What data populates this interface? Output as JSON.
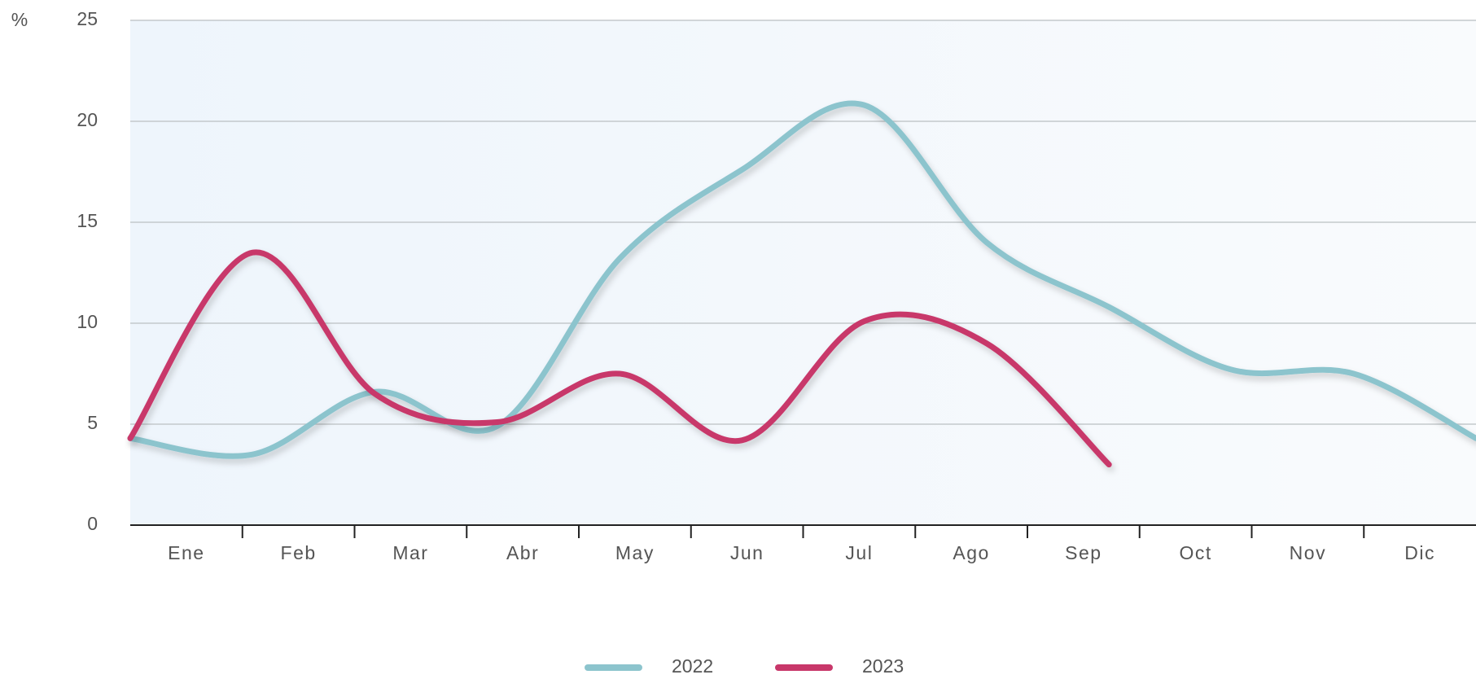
{
  "chart_data": {
    "type": "line",
    "y_label": "%",
    "categories": [
      "Ene",
      "Feb",
      "Mar",
      "Abr",
      "May",
      "Jun",
      "Jul",
      "Ago",
      "Sep",
      "Oct",
      "Nov",
      "Dic"
    ],
    "series": [
      {
        "name": "2022",
        "color": "#8cc4cd",
        "values": [
          4.3,
          3.5,
          6.6,
          4.9,
          13.2,
          17.6,
          20.8,
          14,
          10.8,
          7.7,
          7.5,
          4.3
        ]
      },
      {
        "name": "2023",
        "color": "#c8376a",
        "values": [
          4.3,
          13.5,
          6.5,
          5.1,
          7.5,
          4.2,
          10.1,
          9,
          3.0,
          null,
          null,
          null
        ]
      }
    ],
    "ylim": [
      0,
      25
    ],
    "yticks": [
      0,
      5,
      10,
      15,
      20,
      25
    ],
    "grid": true
  }
}
